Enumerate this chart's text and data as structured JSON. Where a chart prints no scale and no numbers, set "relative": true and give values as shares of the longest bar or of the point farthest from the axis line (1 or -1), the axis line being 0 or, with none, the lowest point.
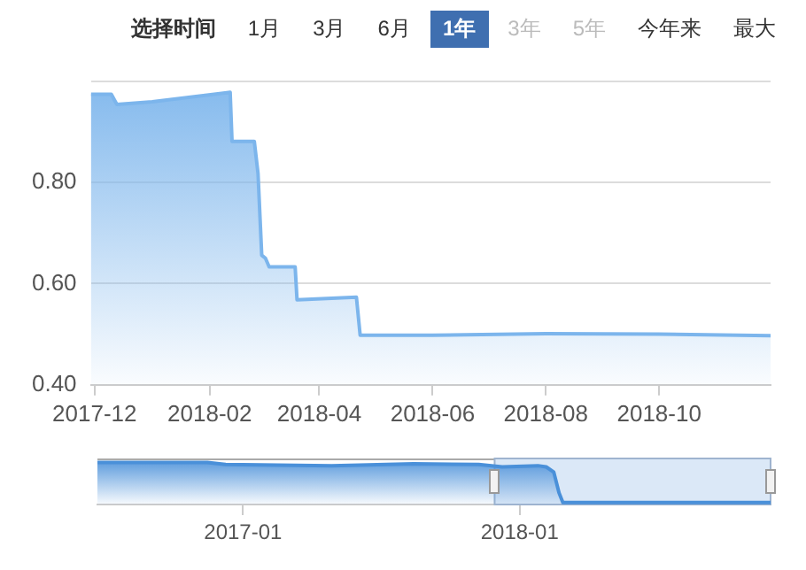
{
  "chart_data": [
    {
      "type": "area",
      "annotations": [
        "选择时间",
        "1月",
        "3月",
        "6月",
        "1年",
        "3年",
        "5年",
        "今年来",
        "最大"
      ],
      "x": [
        "2017-11-29",
        "2017-12-10",
        "2017-12-13",
        "2018-01-01",
        "2018-02-12",
        "2018-02-13",
        "2018-02-25",
        "2018-02-27",
        "2018-03-01",
        "2018-03-03",
        "2018-03-05",
        "2018-03-19",
        "2018-03-20",
        "2018-04-21",
        "2018-04-23",
        "2018-06-01",
        "2018-08-01",
        "2018-10-01",
        "2018-11-30"
      ],
      "series": [
        {
          "color": "#7cb5ec",
          "values": [
            0.974,
            0.974,
            0.954,
            0.959,
            0.978,
            0.881,
            0.881,
            0.818,
            0.656,
            0.65,
            0.633,
            0.633,
            0.568,
            0.573,
            0.498,
            0.498,
            0.501,
            0.5,
            0.497
          ]
        }
      ],
      "xlim": [
        "2017-11-29",
        "2018-11-30"
      ],
      "xticks": [
        {
          "value": "2017-12",
          "label": "2017-12"
        },
        {
          "value": "2018-02",
          "label": "2018-02"
        },
        {
          "value": "2018-04",
          "label": "2018-04"
        },
        {
          "value": "2018-06",
          "label": "2018-06"
        },
        {
          "value": "2018-08",
          "label": "2018-08"
        },
        {
          "value": "2018-10",
          "label": "2018-10"
        }
      ],
      "ylim": [
        0.4,
        1.0
      ],
      "yticks": [
        {
          "value": 0.4,
          "label": "0.40"
        },
        {
          "value": 0.6,
          "label": "0.60"
        },
        {
          "value": 0.8,
          "label": "0.80"
        },
        {
          "value": 1.0,
          "label": null
        }
      ],
      "grid": "y"
    },
    {
      "type": "area",
      "relative": true,
      "tick_labels": "x",
      "x": [
        "2016-06-23",
        "2016-11-15",
        "2016-12-09",
        "2017-04-28",
        "2017-08-14",
        "2017-11-08",
        "2017-12-09",
        "2018-01-25",
        "2018-02-05",
        "2018-02-15",
        "2018-02-22",
        "2018-02-27",
        "2018-11-28"
      ],
      "series": [
        {
          "color": "#4a90d9",
          "values": [
            1,
            1,
            0.95,
            0.92,
            0.97,
            0.95,
            0.89,
            0.92,
            0.89,
            0.76,
            0.24,
            0,
            0
          ]
        }
      ],
      "xlim": [
        "2016-06-23",
        "2018-11-28"
      ],
      "xticks": [
        {
          "value": "2017-01",
          "label": "2017-01"
        },
        {
          "value": "2018-01",
          "label": "2018-01"
        }
      ],
      "bands": [
        {
          "axis": "x",
          "from": "2017-11-29",
          "to": "2018-11-28",
          "color": "#dbe8f7"
        }
      ]
    }
  ]
}
